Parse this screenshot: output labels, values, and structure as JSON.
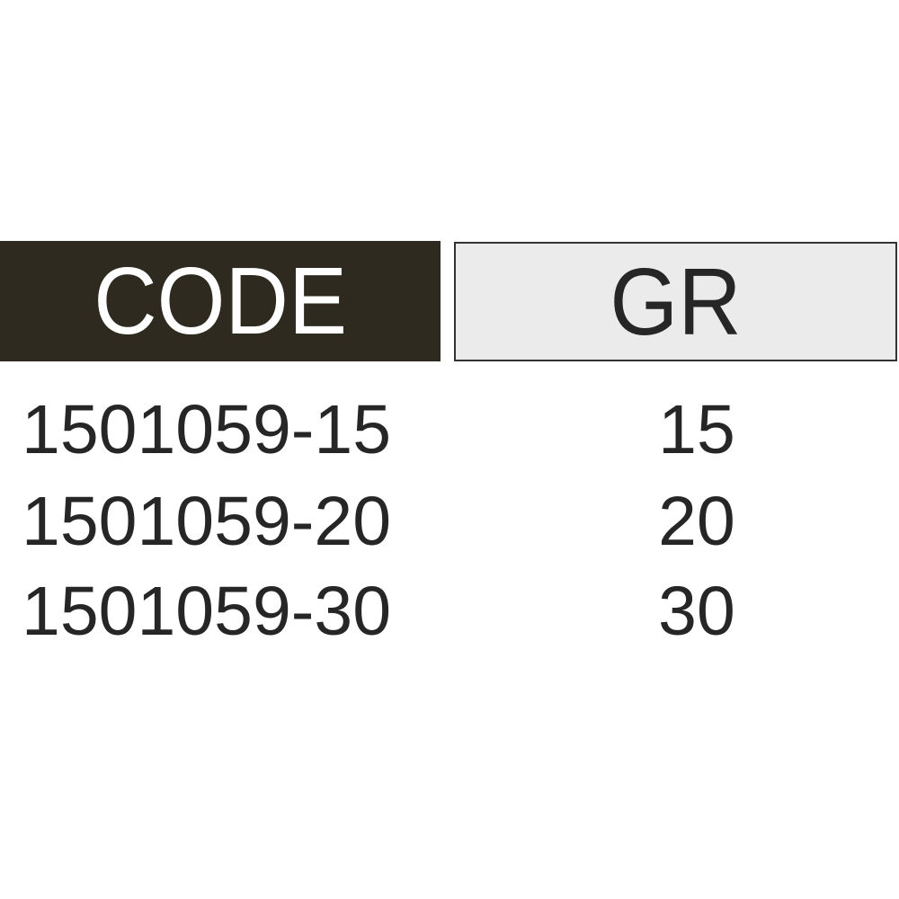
{
  "table": {
    "headers": {
      "code": "CODE",
      "gr": "GR"
    },
    "rows": [
      {
        "code": "1501059-15",
        "gr": "15"
      },
      {
        "code": "1501059-20",
        "gr": "20"
      },
      {
        "code": "1501059-30",
        "gr": "30"
      }
    ]
  },
  "colors": {
    "header_dark": "#2e2a20",
    "header_light": "#ebebeb",
    "text": "#262626"
  }
}
